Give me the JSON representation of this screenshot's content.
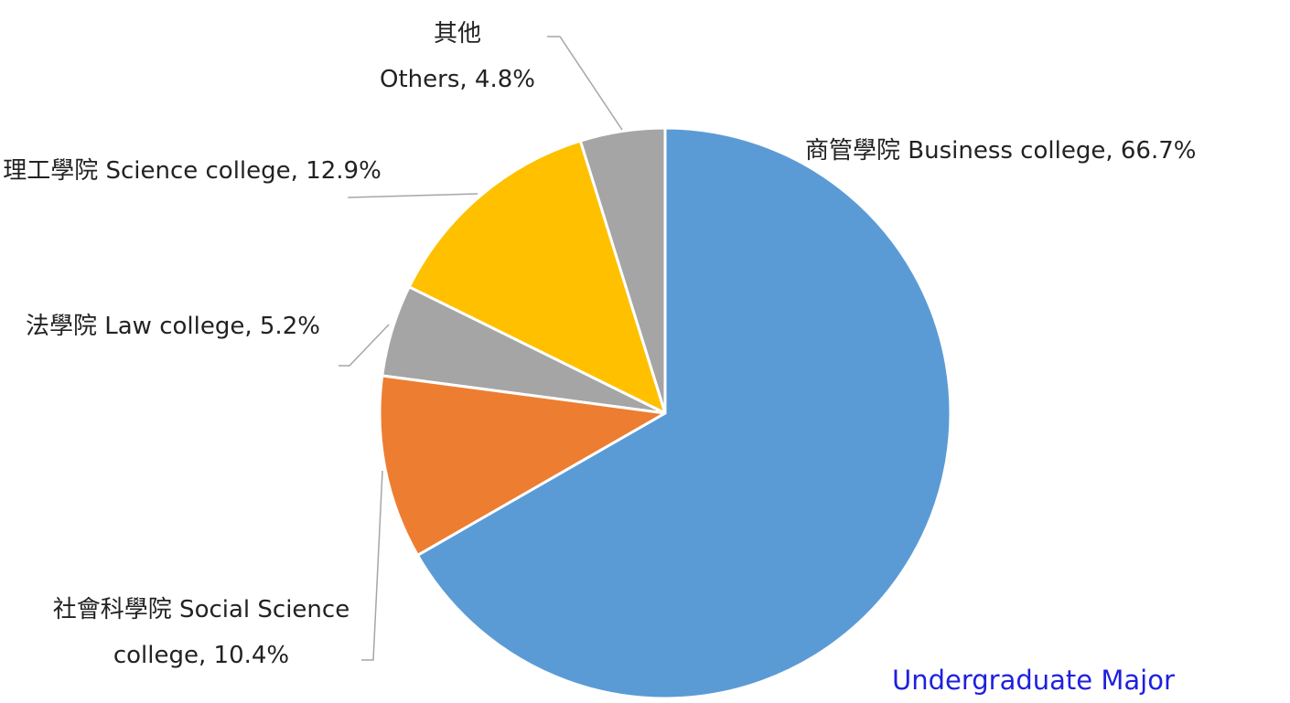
{
  "chart_data": {
    "type": "pie",
    "title": "Undergraduate Major",
    "categories": [
      "商管學院 Business college",
      "社會科學院  Social Science college",
      "法學院 Law college",
      "理工學院 Science college",
      "其他 Others"
    ],
    "values": [
      66.7,
      10.4,
      5.2,
      12.9,
      4.8
    ],
    "value_labels": [
      "66.7%",
      "10.4%",
      "5.2%",
      "12.9%",
      "4.8%"
    ],
    "colors": [
      "#5b9bd5",
      "#ed7d31",
      "#a5a5a5",
      "#ffc000",
      "#a5a5a5"
    ]
  }
}
